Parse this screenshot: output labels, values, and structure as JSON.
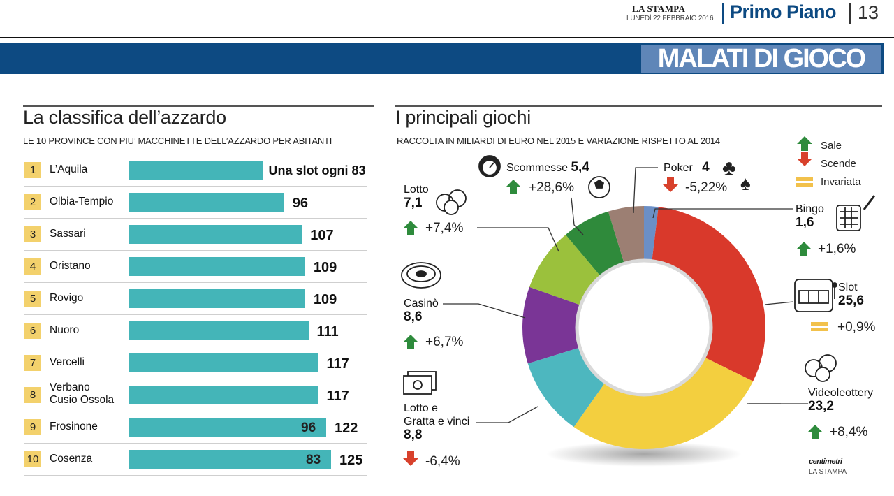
{
  "masthead": {
    "newspaper": "LA STAMPA",
    "date": "LUNEDÌ 22 FEBBRAIO 2016",
    "section": "Primo Piano",
    "page": "13",
    "banner": "MALATI DI GIOCO"
  },
  "ranking": {
    "title": "La classifica dell’azzardo",
    "subtitle": "LE 10 PROVINCE CON PIU’ MACCHINETTE DELL’AZZARDO PER ABITANTI",
    "note": "Una slot ogni",
    "rows": [
      {
        "rank": "1",
        "province": "L’Aquila",
        "value": "83"
      },
      {
        "rank": "2",
        "province": "Olbia-Tempio",
        "value": "96"
      },
      {
        "rank": "3",
        "province": "Sassari",
        "value": "107"
      },
      {
        "rank": "4",
        "province": "Oristano",
        "value": "109"
      },
      {
        "rank": "5",
        "province": "Rovigo",
        "value": "109"
      },
      {
        "rank": "6",
        "province": "Nuoro",
        "value": "111"
      },
      {
        "rank": "7",
        "province": "Vercelli",
        "value": "117"
      },
      {
        "rank": "8",
        "province": "Verbano Cusio Ossola",
        "province_lines": [
          "Verbano",
          "Cusio Ossola"
        ],
        "value": "117"
      },
      {
        "rank": "9",
        "province": "Frosinone",
        "value": "122",
        "inner_value": "96"
      },
      {
        "rank": "10",
        "province": "Cosenza",
        "value": "125",
        "inner_value": "83"
      }
    ]
  },
  "games": {
    "title": "I principali giochi",
    "subtitle": "RACCOLTA IN MILIARDI DI EURO NEL 2015 E VARIAZIONE RISPETTO AL 2014",
    "legend": [
      {
        "label": "Sale",
        "color": "#2e8b3c",
        "icon": "arrow-up-icon"
      },
      {
        "label": "Scende",
        "color": "#d8412c",
        "icon": "arrow-down-icon"
      },
      {
        "label": "Invariata",
        "color": "#f2c14b",
        "icon": "equal-icon"
      }
    ],
    "credit": "centimetri",
    "credit_sub": "LA STAMPA"
  },
  "chart_data": [
    {
      "type": "bar",
      "title": "La classifica dell’azzardo",
      "subtitle": "LE 10 PROVINCE CON PIU’ MACCHINETTE DELL’AZZARDO PER ABITANTI",
      "categories": [
        "L’Aquila",
        "Olbia-Tempio",
        "Sassari",
        "Oristano",
        "Rovigo",
        "Nuoro",
        "Vercelli",
        "Verbano Cusio Ossola",
        "Frosinone",
        "Cosenza"
      ],
      "values": [
        83,
        96,
        107,
        109,
        109,
        111,
        117,
        117,
        122,
        125
      ],
      "orientation": "horizontal",
      "bar_color": "#44b5b8"
    },
    {
      "type": "pie",
      "donut": true,
      "title": "I principali giochi",
      "subtitle": "RACCOLTA IN MILIARDI DI EURO NEL 2015 E VARIAZIONE RISPETTO AL 2014",
      "unit": "miliardi di euro",
      "slices": [
        {
          "label": "Bingo",
          "value": 1.6,
          "change": "+1,6%",
          "trend": "up",
          "color": "#6b8fc6",
          "icon": "bingo-card-icon"
        },
        {
          "label": "Slot",
          "value": 25.6,
          "change": "+0,9%",
          "trend": "flat",
          "color": "#d9392b",
          "icon": "slot-machine-icon"
        },
        {
          "label": "Videoleottery",
          "value": 23.2,
          "change": "+8,4%",
          "trend": "up",
          "color": "#f3cf3f",
          "icon": "coins-icon"
        },
        {
          "label": "Lotto e Gratta e vinci",
          "label_lines": [
            "Lotto e",
            "Gratta e vinci"
          ],
          "value": 8.8,
          "change": "-6,4%",
          "trend": "down",
          "color": "#4db7bf",
          "icon": "banknotes-icon"
        },
        {
          "label": "Casinò",
          "value": 8.6,
          "change": "+6,7%",
          "trend": "up",
          "color": "#7a3596",
          "icon": "roulette-icon"
        },
        {
          "label": "Lotto",
          "value": 7.1,
          "change": "+7,4%",
          "trend": "up",
          "color": "#9bc13c",
          "icon": "lotto-balls-icon"
        },
        {
          "label": "Scommesse",
          "value": 5.4,
          "change": "+28,6%",
          "trend": "up",
          "color": "#2f8a3b",
          "icon": "stopwatch-icon"
        },
        {
          "label": "Poker",
          "value": 4,
          "change": "-5,22%",
          "trend": "down",
          "color": "#9c7f73",
          "icon": "card-suits-icon"
        }
      ]
    }
  ]
}
